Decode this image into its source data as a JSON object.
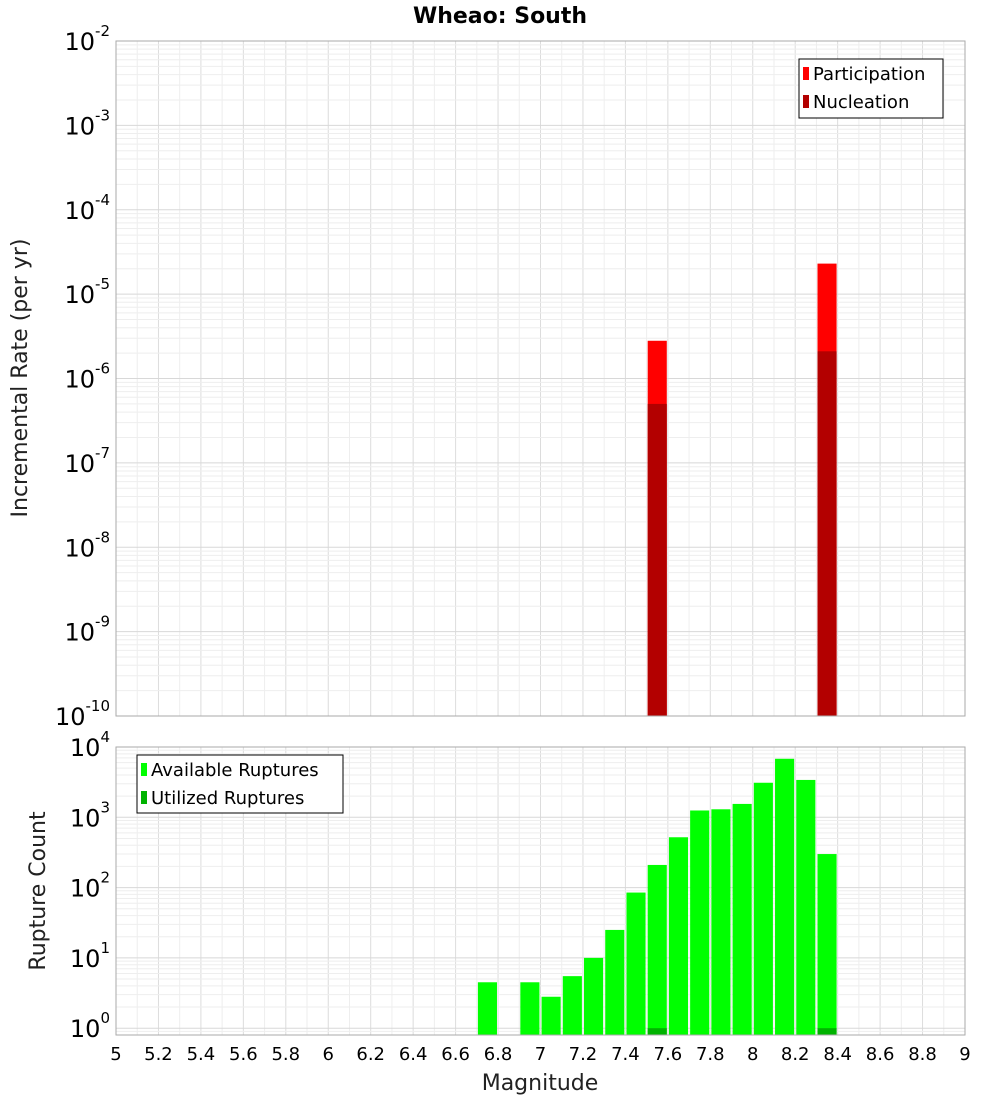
{
  "chart_data": [
    {
      "type": "bar",
      "title": "Wheao: South",
      "xlabel": "Magnitude",
      "ylabel": "Incremental Rate (per yr)",
      "yscale": "log",
      "ylim": [
        1e-10,
        0.01
      ],
      "xlim": [
        5,
        9
      ],
      "bar_width": 0.09,
      "grid": true,
      "legend_position": "top-right",
      "series": [
        {
          "name": "Participation",
          "color": "#ff0000",
          "points": [
            {
              "x": 7.55,
              "y": 2.8e-06
            },
            {
              "x": 8.35,
              "y": 2.3e-05
            }
          ]
        },
        {
          "name": "Nucleation",
          "color": "#b30000",
          "points": [
            {
              "x": 7.55,
              "y": 5e-07
            },
            {
              "x": 8.35,
              "y": 2.1e-06
            }
          ]
        }
      ]
    },
    {
      "type": "bar",
      "title": "",
      "xlabel": "Magnitude",
      "ylabel": "Rupture Count",
      "yscale": "log",
      "ylim": [
        0.8,
        10000
      ],
      "xlim": [
        5,
        9
      ],
      "bar_width": 0.09,
      "grid": true,
      "legend_position": "top-left",
      "x_ticks": [
        5,
        5.2,
        5.4,
        5.6,
        5.8,
        6,
        6.2,
        6.4,
        6.6,
        6.8,
        7,
        7.2,
        7.4,
        7.6,
        7.8,
        8,
        8.2,
        8.4,
        8.6,
        8.8,
        9
      ],
      "series": [
        {
          "name": "Available Ruptures",
          "color": "#00ff00",
          "points": [
            {
              "x": 6.75,
              "y": 4.5
            },
            {
              "x": 6.95,
              "y": 4.5
            },
            {
              "x": 7.05,
              "y": 2.8
            },
            {
              "x": 7.15,
              "y": 5.5
            },
            {
              "x": 7.25,
              "y": 10
            },
            {
              "x": 7.35,
              "y": 25
            },
            {
              "x": 7.45,
              "y": 85
            },
            {
              "x": 7.55,
              "y": 210
            },
            {
              "x": 7.65,
              "y": 520
            },
            {
              "x": 7.75,
              "y": 1250
            },
            {
              "x": 7.85,
              "y": 1300
            },
            {
              "x": 7.95,
              "y": 1550
            },
            {
              "x": 8.05,
              "y": 3100
            },
            {
              "x": 8.15,
              "y": 6800
            },
            {
              "x": 8.25,
              "y": 3400
            },
            {
              "x": 8.35,
              "y": 300
            }
          ]
        },
        {
          "name": "Utilized Ruptures",
          "color": "#00b300",
          "points": [
            {
              "x": 7.55,
              "y": 1
            },
            {
              "x": 8.35,
              "y": 1
            }
          ]
        }
      ]
    }
  ]
}
